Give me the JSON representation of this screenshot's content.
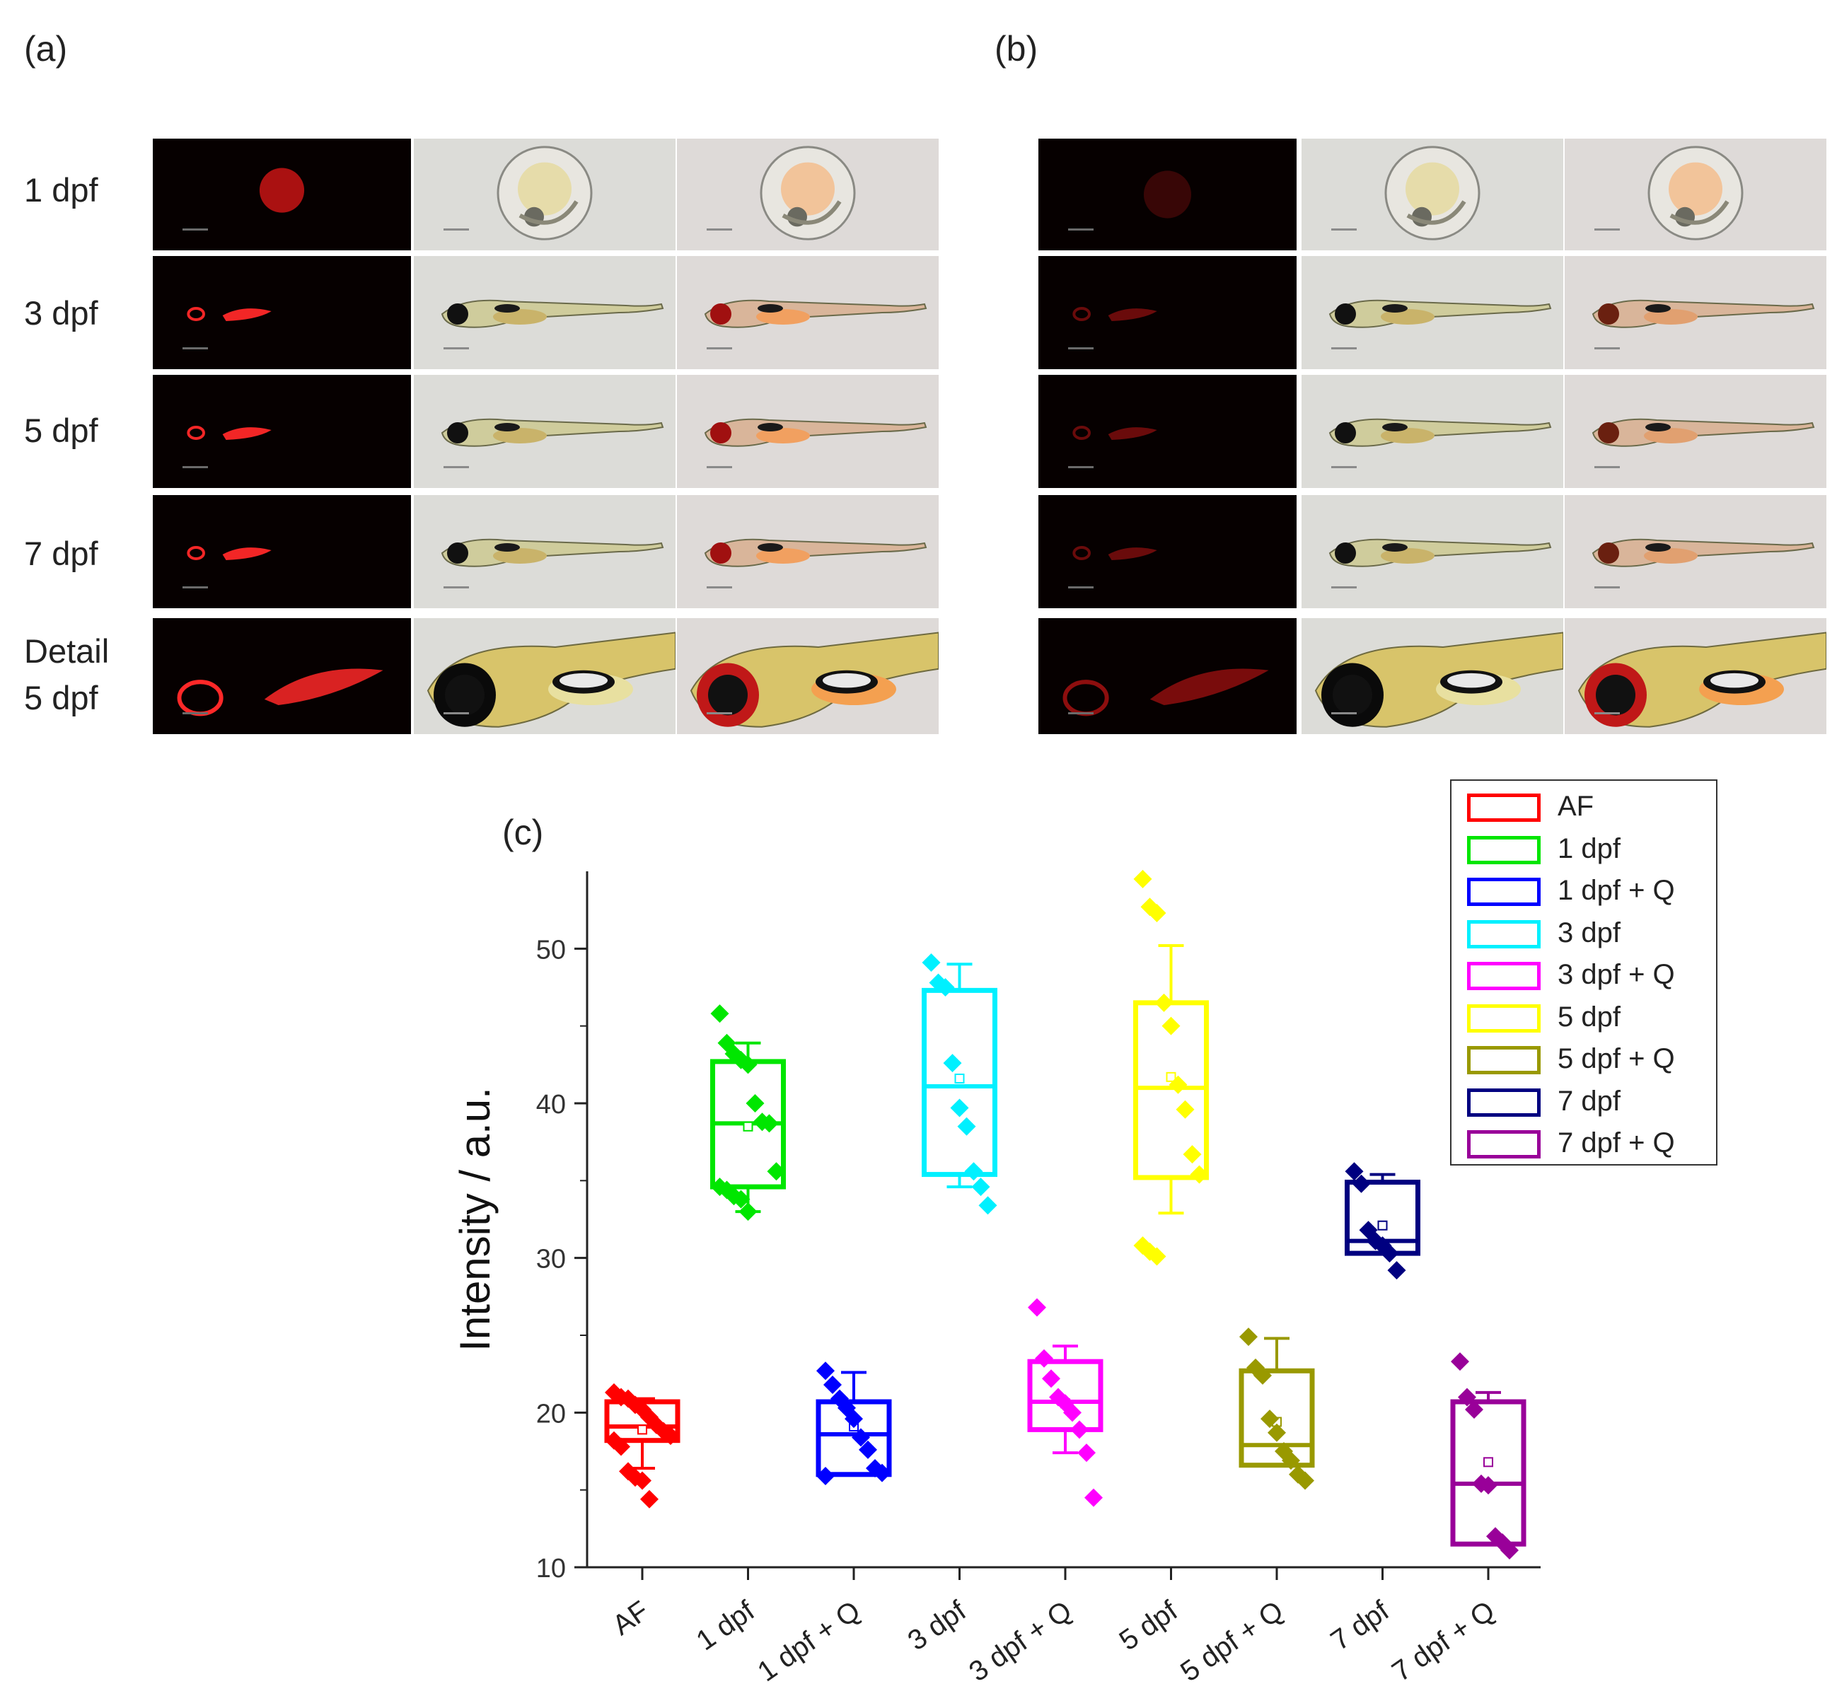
{
  "panels": {
    "a": "(a)",
    "b": "(b)",
    "c": "(c)"
  },
  "row_labels": [
    {
      "lines": [
        "1 dpf"
      ]
    },
    {
      "lines": [
        "3 dpf"
      ]
    },
    {
      "lines": [
        "5 dpf"
      ]
    },
    {
      "lines": [
        "7 dpf"
      ]
    },
    {
      "lines": [
        "Detail",
        "5 dpf"
      ]
    }
  ],
  "image_columns": [
    "fluorescence",
    "brightfield",
    "merge"
  ],
  "chart_data": {
    "type": "box",
    "title": "",
    "xlabel": "",
    "ylabel": "Intensity / a.u.",
    "ylim": [
      10,
      55
    ],
    "yticks": [
      10,
      20,
      30,
      40,
      50
    ],
    "grid": false,
    "legend_position": "top-right",
    "categories": [
      "AF",
      "1 dpf",
      "1 dpf + Q",
      "3 dpf",
      "3 dpf + Q",
      "5 dpf",
      "5 dpf + Q",
      "7 dpf",
      "7 dpf + Q"
    ],
    "series": [
      {
        "name": "AF",
        "color": "#ff0000",
        "q1": 18.2,
        "median": 19.1,
        "q3": 20.7,
        "mean": 18.9,
        "whisker_low": 16.4,
        "whisker_high": 20.9,
        "points": [
          21.3,
          21.0,
          20.9,
          20.5,
          20.2,
          19.7,
          19.2,
          18.8,
          18.5,
          18.2,
          17.8,
          16.2,
          15.8,
          15.6,
          14.4
        ]
      },
      {
        "name": "1 dpf",
        "color": "#00e600",
        "q1": 34.6,
        "median": 38.7,
        "q3": 42.7,
        "mean": 38.5,
        "whisker_low": 33.0,
        "whisker_high": 43.9,
        "points": [
          45.8,
          43.9,
          43.2,
          42.8,
          42.5,
          40.0,
          38.8,
          38.7,
          35.6,
          34.6,
          34.4,
          34.0,
          33.8,
          33.0
        ]
      },
      {
        "name": "1 dpf + Q",
        "color": "#0000ff",
        "q1": 16.0,
        "median": 18.6,
        "q3": 20.7,
        "mean": 19.1,
        "whisker_low": 16.0,
        "whisker_high": 22.6,
        "points": [
          22.7,
          21.8,
          20.9,
          20.3,
          19.6,
          18.4,
          17.6,
          16.4,
          16.1,
          15.9
        ]
      },
      {
        "name": "3 dpf",
        "color": "#00f0ff",
        "q1": 35.4,
        "median": 41.1,
        "q3": 47.3,
        "mean": 41.6,
        "whisker_low": 34.6,
        "whisker_high": 49.0,
        "points": [
          49.1,
          47.8,
          47.5,
          42.6,
          39.7,
          38.5,
          35.6,
          34.6,
          33.4
        ]
      },
      {
        "name": "3 dpf + Q",
        "color": "#ff00ff",
        "q1": 18.9,
        "median": 20.7,
        "q3": 23.3,
        "mean": 20.6,
        "whisker_low": 17.4,
        "whisker_high": 24.3,
        "points": [
          26.8,
          23.5,
          22.2,
          21.0,
          20.6,
          20.0,
          18.9,
          17.4,
          14.5
        ]
      },
      {
        "name": "5 dpf",
        "color": "#ffff00",
        "q1": 35.2,
        "median": 41.0,
        "q3": 46.5,
        "mean": 41.7,
        "whisker_low": 32.9,
        "whisker_high": 50.2,
        "points": [
          54.5,
          52.7,
          52.3,
          46.5,
          45.0,
          41.2,
          39.6,
          36.7,
          35.4,
          30.8,
          30.4,
          30.1
        ]
      },
      {
        "name": "5 dpf + Q",
        "color": "#999900",
        "q1": 16.6,
        "median": 17.9,
        "q3": 22.7,
        "mean": 19.4,
        "whisker_low": 16.6,
        "whisker_high": 24.8,
        "points": [
          24.9,
          22.9,
          22.4,
          19.6,
          18.7,
          17.5,
          16.9,
          16.0,
          15.6
        ]
      },
      {
        "name": "7 dpf",
        "color": "#000080",
        "q1": 30.3,
        "median": 31.1,
        "q3": 34.9,
        "mean": 32.1,
        "whisker_low": 30.3,
        "whisker_high": 35.4,
        "points": [
          35.6,
          34.8,
          31.8,
          31.1,
          30.8,
          30.3,
          29.2
        ]
      },
      {
        "name": "7 dpf + Q",
        "color": "#990099",
        "q1": 11.5,
        "median": 15.4,
        "q3": 20.7,
        "mean": 16.8,
        "whisker_low": 11.5,
        "whisker_high": 21.3,
        "points": [
          23.3,
          21.0,
          20.2,
          15.4,
          15.3,
          12.0,
          11.6,
          11.1
        ]
      }
    ]
  }
}
